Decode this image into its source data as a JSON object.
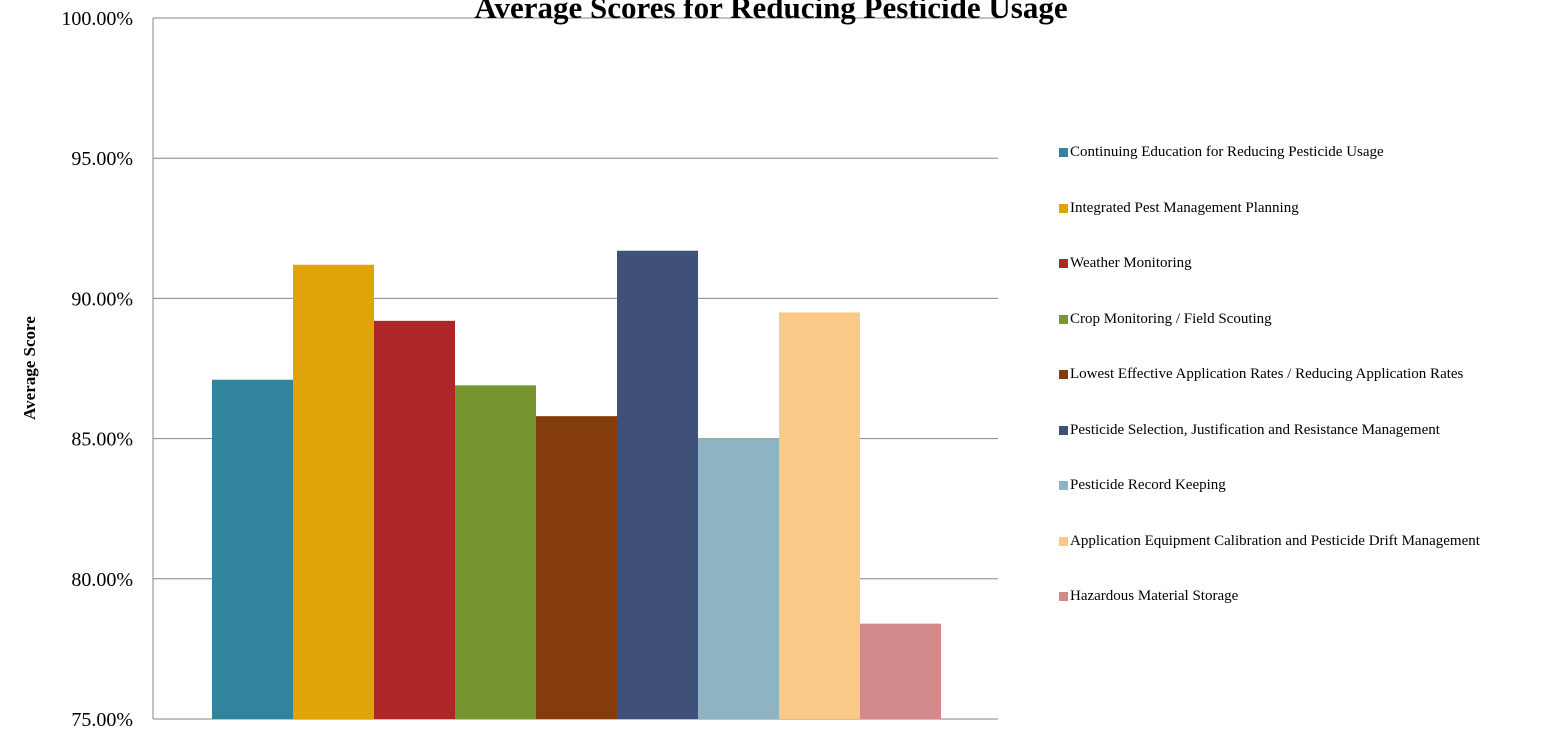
{
  "chart_data": {
    "type": "bar",
    "title": "Average Scores for Reducing Pesticide Usage",
    "xlabel": "",
    "ylabel": "Average Score",
    "ylim": [
      75,
      100
    ],
    "yticks": [
      "75.00%",
      "80.00%",
      "85.00%",
      "90.00%",
      "95.00%",
      "100.00%"
    ],
    "grid": true,
    "legend_position": "right",
    "series": [
      {
        "name": "Continuing Education for Reducing Pesticide Usage",
        "value": 87.1,
        "color": "#31849B"
      },
      {
        "name": "Integrated Pest Management Planning",
        "value": 91.2,
        "color": "#E0A40A"
      },
      {
        "name": "Weather Monitoring",
        "value": 89.2,
        "color": "#AD2729"
      },
      {
        "name": "Crop Monitoring / Field Scouting",
        "value": 86.9,
        "color": "#77962F"
      },
      {
        "name": "Lowest Effective Application Rates / Reducing Application Rates",
        "value": 85.8,
        "color": "#843C0C"
      },
      {
        "name": "Pesticide Selection, Justification and Resistance Management",
        "value": 91.7,
        "color": "#3F5079"
      },
      {
        "name": "Pesticide Record Keeping",
        "value": 85.0,
        "color": "#8EB4C3"
      },
      {
        "name": "Application Equipment Calibration and Pesticide Drift Management",
        "value": 89.5,
        "color": "#FBC987"
      },
      {
        "name": "Hazardous Material Storage",
        "value": 78.4,
        "color": "#D4898A"
      }
    ]
  }
}
